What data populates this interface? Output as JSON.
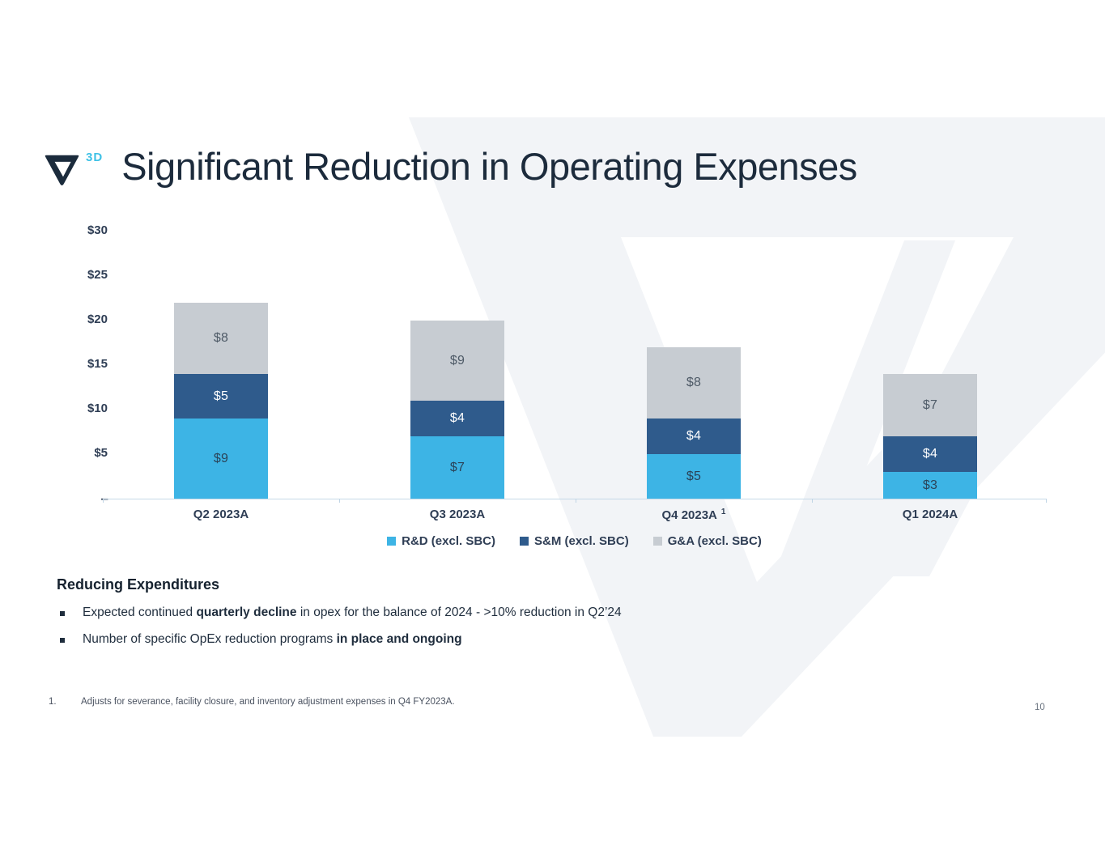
{
  "slide": {
    "brand_3d_label": "3D",
    "title": "Significant Reduction in Operating Expenses",
    "page_number": "10"
  },
  "chart_data": {
    "type": "bar",
    "stacked": true,
    "title": "",
    "xlabel": "",
    "ylabel": "",
    "ylim": [
      0,
      30
    ],
    "grid": false,
    "legend_position": "bottom",
    "categories": [
      "Q2 2023A",
      "Q3 2023A",
      "Q4 2023A",
      "Q1 2024A"
    ],
    "category_markers": [
      "",
      "",
      "1",
      ""
    ],
    "series": [
      {
        "name": "R&D (excl. SBC)",
        "color": "#3db4e5",
        "label_color": "#2b4459",
        "values": [
          9,
          7,
          5,
          3
        ]
      },
      {
        "name": "S&M (excl. SBC)",
        "color": "#2f5b8c",
        "label_color": "#ffffff",
        "values": [
          5,
          4,
          4,
          4
        ]
      },
      {
        "name": "G&A (excl. SBC)",
        "color": "#c7ccd2",
        "label_color": "#4e5a67",
        "values": [
          8,
          9,
          8,
          7
        ]
      }
    ],
    "totals": [
      22,
      20,
      17,
      14
    ],
    "value_prefix": "$",
    "y_axis": [
      {
        "label": "$30",
        "value": 30
      },
      {
        "label": "$25",
        "value": 25
      },
      {
        "label": "$20",
        "value": 20
      },
      {
        "label": "$15",
        "value": 15
      },
      {
        "label": "$10",
        "value": 10
      },
      {
        "label": "$5",
        "value": 5
      },
      {
        "label": "–",
        "value": 0
      }
    ]
  },
  "content": {
    "heading": "Reducing Expenditures",
    "bullets": [
      {
        "parts": [
          {
            "text": "Expected continued ",
            "bold": false
          },
          {
            "text": "quarterly decline",
            "bold": true
          },
          {
            "text": " in opex for the balance of 2024 - >10% reduction in Q2’24",
            "bold": false
          }
        ]
      },
      {
        "parts": [
          {
            "text": "Number of specific OpEx reduction programs ",
            "bold": false
          },
          {
            "text": "in place and ongoing",
            "bold": true
          }
        ]
      }
    ]
  },
  "footnote": {
    "index": "1.",
    "text": "Adjusts for severance, facility closure, and inventory adjustment expenses in Q4 FY2023A."
  },
  "style": {
    "watermark_color": "#f2f4f7",
    "logo_navy": "#1b2b3c",
    "accent_cyan": "#3ec1e6",
    "axis_line_color": "#c5d9e8"
  }
}
